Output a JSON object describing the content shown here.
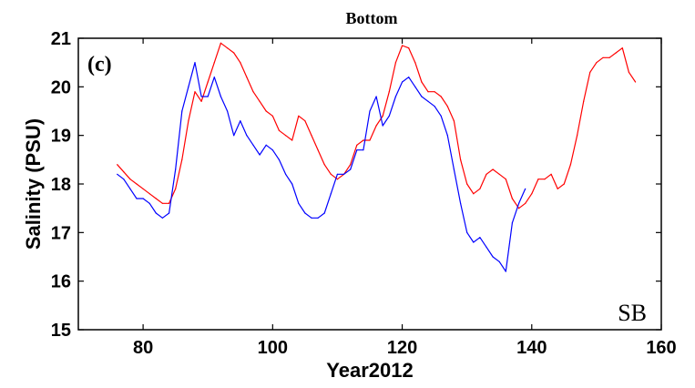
{
  "chart_data": {
    "type": "line",
    "title": "Bottom",
    "panel_label": "(c)",
    "site_label": "SB",
    "xlabel": "Year2012",
    "ylabel": "Salinity (PSU)",
    "xlim": [
      70,
      160
    ],
    "ylim": [
      15,
      21
    ],
    "xticks": [
      80,
      100,
      120,
      140,
      160
    ],
    "yticks": [
      15,
      16,
      17,
      18,
      19,
      20,
      21
    ],
    "grid": false,
    "legend": "none",
    "series": [
      {
        "color": "#ff0000",
        "x": [
          76,
          77,
          78,
          79,
          80,
          81,
          82,
          83,
          84,
          85,
          86,
          87,
          88,
          89,
          90,
          91,
          92,
          93,
          94,
          95,
          96,
          97,
          98,
          99,
          100,
          101,
          102,
          103,
          104,
          105,
          106,
          107,
          108,
          109,
          110,
          111,
          112,
          113,
          114,
          115,
          116,
          117,
          118,
          119,
          120,
          121,
          122,
          123,
          124,
          125,
          126,
          127,
          128,
          129,
          130,
          131,
          132,
          133,
          134,
          135,
          136,
          137,
          138,
          139,
          140,
          141,
          142,
          143,
          144,
          145,
          146,
          147,
          148,
          149,
          150,
          151,
          152,
          153,
          154,
          155,
          156
        ],
        "y": [
          18.4,
          18.25,
          18.1,
          18.0,
          17.9,
          17.8,
          17.7,
          17.6,
          17.6,
          17.9,
          18.5,
          19.3,
          19.9,
          19.7,
          20.1,
          20.5,
          20.9,
          20.8,
          20.7,
          20.5,
          20.2,
          19.9,
          19.7,
          19.5,
          19.4,
          19.1,
          19.0,
          18.9,
          19.4,
          19.3,
          19.0,
          18.7,
          18.4,
          18.2,
          18.1,
          18.2,
          18.4,
          18.8,
          18.9,
          18.9,
          19.2,
          19.4,
          19.9,
          20.5,
          20.85,
          20.8,
          20.5,
          20.1,
          19.9,
          19.9,
          19.8,
          19.6,
          19.3,
          18.5,
          18.0,
          17.8,
          17.9,
          18.2,
          18.3,
          18.2,
          18.1,
          17.7,
          17.5,
          17.6,
          17.8,
          18.1,
          18.1,
          18.2,
          17.9,
          18.0,
          18.4,
          19.0,
          19.7,
          20.3,
          20.5,
          20.6,
          20.6,
          20.7,
          20.8,
          20.3,
          20.1
        ]
      },
      {
        "color": "#0000ff",
        "x": [
          76,
          77,
          78,
          79,
          80,
          81,
          82,
          83,
          84,
          85,
          86,
          87,
          88,
          89,
          90,
          91,
          92,
          93,
          94,
          95,
          96,
          97,
          98,
          99,
          100,
          101,
          102,
          103,
          104,
          105,
          106,
          107,
          108,
          109,
          110,
          111,
          112,
          113,
          114,
          115,
          116,
          117,
          118,
          119,
          120,
          121,
          122,
          123,
          124,
          125,
          126,
          127,
          128,
          129,
          130,
          131,
          132,
          133,
          134,
          135,
          136,
          137,
          138,
          139
        ],
        "y": [
          18.2,
          18.1,
          17.9,
          17.7,
          17.7,
          17.6,
          17.4,
          17.3,
          17.4,
          18.3,
          19.5,
          20.0,
          20.5,
          19.8,
          19.8,
          20.2,
          19.8,
          19.5,
          19.0,
          19.3,
          19.0,
          18.8,
          18.6,
          18.8,
          18.7,
          18.5,
          18.2,
          18.0,
          17.6,
          17.4,
          17.3,
          17.3,
          17.4,
          17.8,
          18.2,
          18.2,
          18.3,
          18.7,
          18.7,
          19.5,
          19.8,
          19.2,
          19.4,
          19.8,
          20.1,
          20.2,
          20.0,
          19.8,
          19.7,
          19.6,
          19.4,
          19.0,
          18.3,
          17.6,
          17.0,
          16.8,
          16.9,
          16.7,
          16.5,
          16.4,
          16.2,
          17.2,
          17.6,
          17.9
        ]
      }
    ]
  }
}
